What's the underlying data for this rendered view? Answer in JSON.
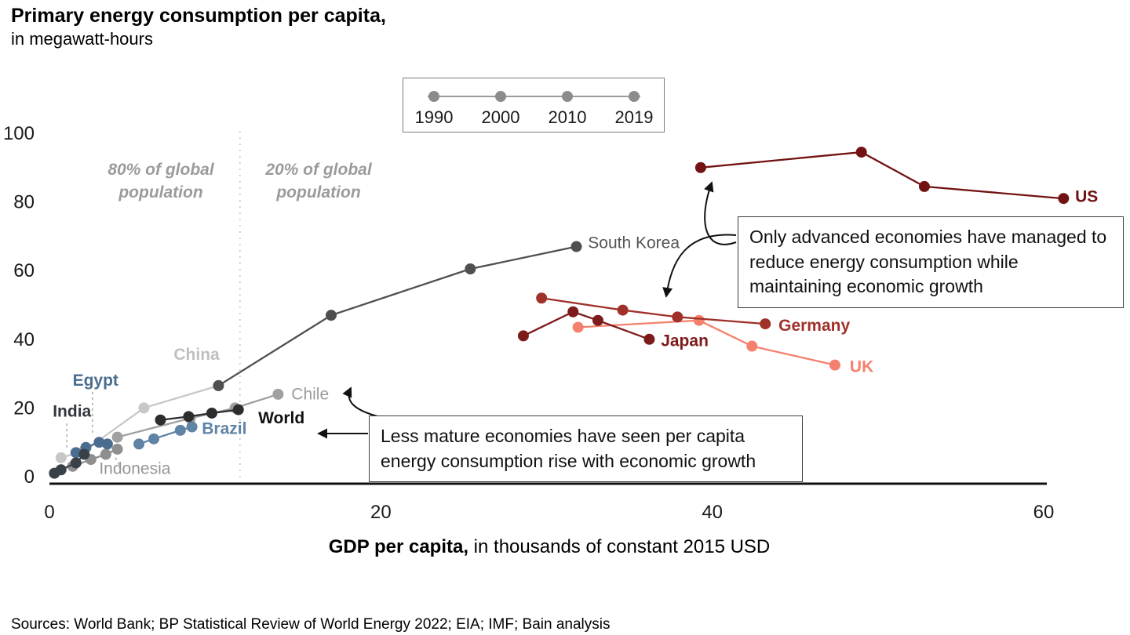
{
  "header": {
    "title": "Primary energy consumption per capita,",
    "subtitle": "in megawatt-hours"
  },
  "xaxis": {
    "label_bold": "GDP per capita,",
    "label_rest": " in thousands of constant 2015 USD"
  },
  "legend": {
    "years": [
      "1990",
      "2000",
      "2010",
      "2019"
    ],
    "dot_color": "#8c8c8c",
    "line_color": "#9a9a9a"
  },
  "population_split": {
    "left": "80% of global\npopulation",
    "right": "20% of global\npopulation"
  },
  "annotations": {
    "advanced": "Only advanced economies have managed to reduce energy consumption while maintaining economic growth",
    "less_mature": "Less mature economies have seen per capita energy consumption rise with economic growth"
  },
  "footer": {
    "sources": "Sources: World Bank; BP Statistical Review of World Energy 2022; EIA; IMF; Bain analysis"
  },
  "chart_data": {
    "type": "line",
    "title": "Primary energy consumption per capita, in megawatt-hours",
    "xlabel": "GDP per capita, in thousands of constant 2015 USD",
    "ylabel": "Primary energy consumption per capita (MWh)",
    "xlim": [
      0,
      60
    ],
    "ylim": [
      0,
      100
    ],
    "x_ticks": [
      0,
      20,
      40,
      60
    ],
    "y_ticks": [
      0,
      20,
      40,
      60,
      80,
      100
    ],
    "grid": false,
    "divider_x": 11.5,
    "point_years": [
      "1990",
      "2000",
      "2010",
      "2019"
    ],
    "series": [
      {
        "name": "China",
        "color": "#c7c7c7",
        "label_color": "#bfbfbf",
        "bold": true,
        "points": [
          [
            0.7,
            5.5
          ],
          [
            2.1,
            7.5
          ],
          [
            5.7,
            20
          ],
          [
            10.2,
            26.5
          ]
        ],
        "label_at": [
          7.5,
          34
        ]
      },
      {
        "name": "Chile",
        "color": "#a0a0a0",
        "label_color": "#9c9c9c",
        "bold": false,
        "points": [
          [
            4.1,
            11.5
          ],
          [
            8.5,
            17
          ],
          [
            11.2,
            20
          ],
          [
            13.8,
            24
          ]
        ],
        "label_at": [
          14.6,
          22.5
        ]
      },
      {
        "name": "Indonesia",
        "color": "#8f8f8f",
        "label_color": "#969696",
        "bold": false,
        "points": [
          [
            1.4,
            3
          ],
          [
            2.5,
            5
          ],
          [
            3.4,
            6.5
          ],
          [
            4.1,
            8
          ]
        ],
        "label_at": [
          3.0,
          0.8
        ],
        "leader": [
          [
            4.2,
            3.5
          ],
          [
            3.9,
            6.3
          ]
        ]
      },
      {
        "name": "Brazil",
        "color": "#5f84a6",
        "label_color": "#5f84a6",
        "bold": true,
        "points": [
          [
            5.4,
            9.5
          ],
          [
            6.3,
            11
          ],
          [
            7.9,
            13.5
          ],
          [
            8.6,
            14.5
          ]
        ],
        "label_at": [
          9.2,
          12.5
        ]
      },
      {
        "name": "Egypt",
        "color": "#4a6d8f",
        "label_color": "#4a6d8f",
        "bold": true,
        "points": [
          [
            1.6,
            7
          ],
          [
            2.2,
            8.5
          ],
          [
            3.0,
            10
          ],
          [
            3.5,
            9.5
          ]
        ],
        "label_at": [
          1.4,
          26.5
        ],
        "leader": [
          [
            2.6,
            24.7
          ],
          [
            2.6,
            12.3
          ]
        ]
      },
      {
        "name": "India",
        "color": "#3a4048",
        "label_color": "#30353d",
        "bold": true,
        "points": [
          [
            0.3,
            1
          ],
          [
            0.7,
            2
          ],
          [
            1.6,
            4
          ],
          [
            2.1,
            6.5
          ]
        ],
        "label_at": [
          0.2,
          17.5
        ],
        "leader": [
          [
            1.05,
            15.5
          ],
          [
            1.05,
            8.5
          ]
        ]
      },
      {
        "name": "World",
        "color": "#2d2d2d",
        "label_color": "#111111",
        "bold": true,
        "points": [
          [
            6.7,
            16.5
          ],
          [
            8.4,
            17.5
          ],
          [
            9.8,
            18.5
          ],
          [
            11.4,
            19.5
          ]
        ],
        "label_at": [
          12.6,
          15.5
        ]
      },
      {
        "name": "South Korea",
        "color": "#4f4f4f",
        "label_color": "#555555",
        "bold": false,
        "points": [
          [
            10.2,
            26.5
          ],
          [
            17,
            47
          ],
          [
            25.4,
            60.5
          ],
          [
            31.8,
            67
          ]
        ],
        "label_at": [
          32.5,
          66.5
        ]
      },
      {
        "name": "UK",
        "color": "#f5806d",
        "label_color": "#f5806d",
        "bold": true,
        "points": [
          [
            31.9,
            43.5
          ],
          [
            39.2,
            45.5
          ],
          [
            42.4,
            38
          ],
          [
            47.4,
            32.5
          ]
        ],
        "label_at": [
          48.3,
          30.5
        ]
      },
      {
        "name": "Japan",
        "color": "#7d1a1a",
        "label_color": "#7d1a1a",
        "bold": true,
        "points": [
          [
            28.6,
            41
          ],
          [
            31.6,
            48
          ],
          [
            33.1,
            45.5
          ],
          [
            36.2,
            40
          ]
        ],
        "label_at": [
          36.9,
          38
        ]
      },
      {
        "name": "Germany",
        "color": "#a0302a",
        "label_color": "#a0302a",
        "bold": true,
        "points": [
          [
            29.7,
            52
          ],
          [
            34.6,
            48.5
          ],
          [
            37.9,
            46.5
          ],
          [
            43.2,
            44.5
          ]
        ],
        "label_at": [
          44,
          42.5
        ]
      },
      {
        "name": "US",
        "color": "#731212",
        "label_color": "#731212",
        "bold": true,
        "points": [
          [
            39.3,
            90
          ],
          [
            49,
            94.5
          ],
          [
            52.8,
            84.5
          ],
          [
            61.2,
            81
          ]
        ],
        "label_at": [
          61.9,
          80
        ]
      }
    ]
  }
}
